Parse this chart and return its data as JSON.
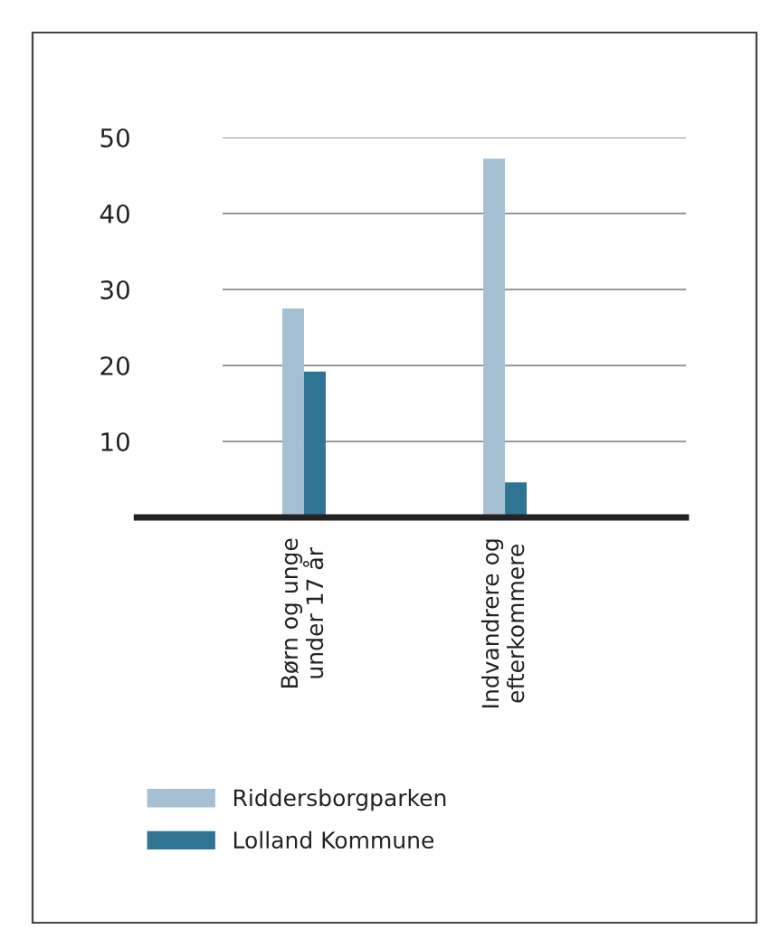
{
  "chart_data": {
    "type": "bar",
    "categories": [
      "Børn og unge\nunder 17 år",
      "Indvandrere og\nefterkommere"
    ],
    "series": [
      {
        "name": "Riddersborgparken",
        "color": "#a5c0d3",
        "values": [
          27.5,
          47.2
        ]
      },
      {
        "name": "Lolland Kommune",
        "color": "#307493",
        "values": [
          19.2,
          4.6
        ]
      }
    ],
    "ylim": [
      0,
      50
    ],
    "yticks": [
      10,
      20,
      30,
      40,
      50
    ],
    "grid": "y",
    "legend": "bottom"
  }
}
